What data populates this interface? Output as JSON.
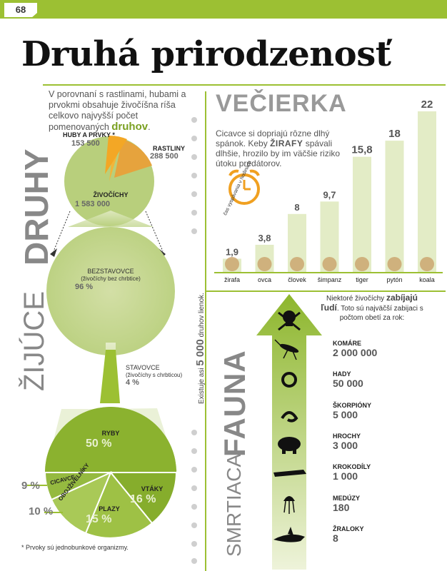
{
  "header": {
    "page_number": "68",
    "title": "Druhá prirodzenosť"
  },
  "left_section": {
    "vertical_title_bold": "DRUHY",
    "vertical_title_light": "ŽIJÚCE",
    "intro_text": "V porovnaní s rastlinami, hubami a prvokmi obsahuje živočíšna ríša celkovo najvyšší počet pomenovaných",
    "intro_emphasis": "druhov",
    "top_pie": {
      "huby_label": "HUBY A PRVKY *",
      "huby_value": "153 500",
      "rastliny_label": "RASTLINY",
      "rastliny_value": "288 500",
      "zivocichy_label": "ŽIVOČÍCHY",
      "zivocichy_value": "1 583 000"
    },
    "bezstavovce": {
      "label": "BEZSTAVOVCE",
      "sub": "(živočíchy bez chrbtice)",
      "value": "96 %"
    },
    "stavovce": {
      "label": "STAVOVCE",
      "sub": "(živočíchy s chrbticou)",
      "value": "4 %"
    },
    "bottom_pie": {
      "ryby_label": "RYBY",
      "ryby_value": "50 %",
      "cicavce_label": "CICAVCE",
      "cicavce_value": "9 %",
      "obojzivelniky_label": "OBOJŽIVELNÍKY",
      "obojzivelniky_value": "10 %",
      "plazy_label": "PLAZY",
      "plazy_value": "15 %",
      "vtaky_label": "VTÁKY",
      "vtaky_value": "16 %"
    },
    "footnote": "* Prvoky sú jednobunkové organizmy."
  },
  "middle_note": {
    "prefix": "Existuje asi",
    "number": "5 000",
    "suffix": "druhov lienok."
  },
  "vecierka": {
    "title": "VEČIERKA",
    "intro_pre": "Cicavce si dopriajú rôzne dlhý spánok. Keby",
    "intro_bold": "ŽIRAFY",
    "intro_post": "spávali dlhšie, hrozilo by im väčšie riziko útoku predátorov.",
    "clock_label": "čas vyspávania v hodinách",
    "chart_data": {
      "type": "bar",
      "categories": [
        "žirafa",
        "ovca",
        "človek",
        "šimpanz",
        "tiger",
        "pytón",
        "koala"
      ],
      "values": [
        1.9,
        3.8,
        8,
        9.7,
        15.8,
        18,
        22
      ],
      "value_labels": [
        "1,9",
        "3,8",
        "8",
        "9,7",
        "15,8",
        "18",
        "22"
      ],
      "title": "VEČIERKA",
      "ylim": [
        0,
        22
      ],
      "bar_color": "#e3ecc6"
    }
  },
  "fauna": {
    "vertical_title_bold": "FAUNA",
    "vertical_title_light": "SMRTIACA",
    "intro_pre": "Niektoré živočíchy",
    "intro_bold": "zabíjajú ľudí",
    "intro_post": ". Toto sú najväčší zabijaci s počtom obetí za rok:",
    "killers": [
      {
        "name": "KOMÁRE",
        "value": "2 000 000",
        "icon": "mosquito-icon"
      },
      {
        "name": "HADY",
        "value": "50 000",
        "icon": "snake-icon"
      },
      {
        "name": "ŠKORPIÓNY",
        "value": "5 000",
        "icon": "scorpion-icon"
      },
      {
        "name": "HROCHY",
        "value": "3 000",
        "icon": "hippo-icon"
      },
      {
        "name": "KROKODÍLY",
        "value": "1 000",
        "icon": "crocodile-icon"
      },
      {
        "name": "MEDÚZY",
        "value": "180",
        "icon": "jellyfish-icon"
      },
      {
        "name": "ŽRALOKY",
        "value": "8",
        "icon": "shark-icon"
      }
    ]
  },
  "colors": {
    "accent": "#9cc033",
    "pie_green": "#b8cf7c",
    "dark_green": "#7aa021",
    "orange": "#f0a020",
    "dark_orange": "#d9801a"
  }
}
